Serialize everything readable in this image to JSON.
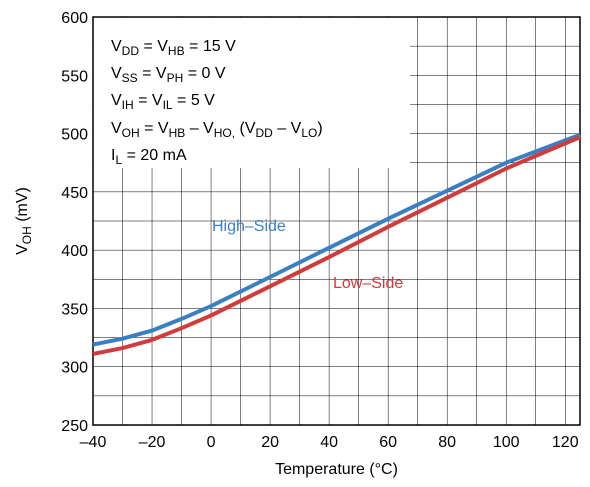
{
  "chart_data": {
    "type": "line",
    "xlabel_main": "Temperature (",
    "xlabel_unit": "°C",
    "xlabel_end": ")",
    "ylabel_main": "V",
    "ylabel_sub": "OH",
    "ylabel_end": " (mV)",
    "xlim": [
      -40,
      125
    ],
    "ylim": [
      250,
      600
    ],
    "xticks": [
      -40,
      -20,
      0,
      20,
      40,
      60,
      80,
      100,
      120
    ],
    "xtick_labels": [
      "–40",
      "–20",
      "0",
      "20",
      "40",
      "60",
      "80",
      "100",
      "120"
    ],
    "yticks": [
      250,
      300,
      350,
      400,
      450,
      500,
      550,
      600
    ],
    "ytick_labels": [
      "250",
      "300",
      "350",
      "400",
      "450",
      "500",
      "550",
      "600"
    ],
    "grid": true,
    "conditions": [
      {
        "parts": [
          [
            "V",
            ""
          ],
          [
            "DD",
            "sub"
          ],
          [
            " = V",
            ""
          ],
          [
            "HB",
            "sub"
          ],
          [
            " = 15 V",
            ""
          ]
        ]
      },
      {
        "parts": [
          [
            "V",
            ""
          ],
          [
            "SS",
            "sub"
          ],
          [
            " = V",
            ""
          ],
          [
            "PH",
            "sub"
          ],
          [
            " = 0 V",
            ""
          ]
        ]
      },
      {
        "parts": [
          [
            "V",
            ""
          ],
          [
            "IH",
            "sub"
          ],
          [
            " = V",
            ""
          ],
          [
            "IL",
            "sub"
          ],
          [
            " = 5 V",
            ""
          ]
        ]
      },
      {
        "parts": [
          [
            "V",
            ""
          ],
          [
            "OH",
            "sub"
          ],
          [
            " = V",
            ""
          ],
          [
            "HB",
            "sub"
          ],
          [
            " – V",
            ""
          ],
          [
            "HO,",
            "sub"
          ],
          [
            " (V",
            ""
          ],
          [
            "DD",
            "sub"
          ],
          [
            " – V",
            ""
          ],
          [
            "LO",
            "sub"
          ],
          [
            ")",
            ""
          ]
        ]
      },
      {
        "parts": [
          [
            "I",
            ""
          ],
          [
            "L",
            "sub"
          ],
          [
            " = 20 mA",
            ""
          ]
        ]
      }
    ],
    "series": [
      {
        "name": "High–Side",
        "color": "#3a7fc4",
        "x": [
          -40,
          -30,
          -20,
          -10,
          0,
          20,
          40,
          60,
          80,
          100,
          125
        ],
        "y": [
          319,
          324,
          331,
          341,
          352,
          377,
          402,
          427,
          451,
          475,
          499
        ]
      },
      {
        "name": "Low–Side",
        "color": "#d23b3b",
        "x": [
          -40,
          -30,
          -20,
          -10,
          0,
          20,
          40,
          60,
          80,
          100,
          125
        ],
        "y": [
          311,
          316,
          323,
          333,
          344,
          369,
          394,
          420,
          445,
          470,
          497
        ]
      }
    ]
  }
}
